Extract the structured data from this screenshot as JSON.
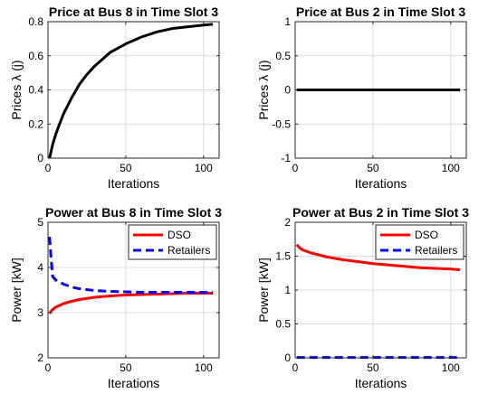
{
  "chart_data": [
    {
      "type": "line",
      "title": "Price at Bus 8 in Time Slot 3",
      "xlabel": "Iterations",
      "ylabel": "Prices λ (j)",
      "xlim": [
        0,
        110
      ],
      "ylim": [
        0,
        0.8
      ],
      "xticks": [
        0,
        50,
        100
      ],
      "yticks": [
        0,
        0.2,
        0.4,
        0.6,
        0.8
      ],
      "xtick_labels": [
        "0",
        "50",
        "100"
      ],
      "ytick_labels": [
        "0",
        "0.2",
        "0.4",
        "0.6",
        "0.8"
      ],
      "grid": true,
      "legend": null,
      "series": [
        {
          "color": "#000000",
          "style": "solid",
          "x": [
            1,
            2,
            3,
            5,
            7,
            10,
            15,
            20,
            25,
            30,
            40,
            50,
            60,
            70,
            80,
            90,
            100,
            106
          ],
          "y": [
            0.0,
            0.04,
            0.08,
            0.14,
            0.19,
            0.26,
            0.35,
            0.43,
            0.49,
            0.54,
            0.62,
            0.67,
            0.71,
            0.74,
            0.76,
            0.77,
            0.78,
            0.785
          ]
        }
      ]
    },
    {
      "type": "line",
      "title": "Price at Bus 2 in Time Slot 3",
      "xlabel": "Iterations",
      "ylabel": "Prices λ (j)",
      "xlim": [
        0,
        110
      ],
      "ylim": [
        -1,
        1
      ],
      "xticks": [
        0,
        50,
        100
      ],
      "yticks": [
        -1,
        -0.5,
        0,
        0.5,
        1
      ],
      "xtick_labels": [
        "0",
        "50",
        "100"
      ],
      "ytick_labels": [
        "-1",
        "-0.5",
        "0",
        "0.5",
        "1"
      ],
      "grid": true,
      "legend": null,
      "series": [
        {
          "color": "#000000",
          "style": "solid",
          "x": [
            1,
            106
          ],
          "y": [
            0,
            0
          ]
        }
      ]
    },
    {
      "type": "line",
      "title": "Power at Bus 8 in Time Slot 3",
      "xlabel": "Iterations",
      "ylabel": "Power [kW]",
      "xlim": [
        0,
        110
      ],
      "ylim": [
        2,
        5
      ],
      "xticks": [
        0,
        50,
        100
      ],
      "yticks": [
        2,
        3,
        4,
        5
      ],
      "xtick_labels": [
        "0",
        "50",
        "100"
      ],
      "ytick_labels": [
        "2",
        "3",
        "4",
        "5"
      ],
      "grid": true,
      "legend": "top-right",
      "series": [
        {
          "name": "DSO",
          "color": "#ff0000",
          "style": "solid",
          "x": [
            1,
            2,
            3,
            5,
            8,
            10,
            15,
            20,
            30,
            40,
            50,
            60,
            70,
            80,
            90,
            100,
            106
          ],
          "y": [
            2.98,
            3.03,
            3.07,
            3.12,
            3.17,
            3.2,
            3.25,
            3.29,
            3.34,
            3.37,
            3.39,
            3.4,
            3.41,
            3.42,
            3.43,
            3.43,
            3.43
          ]
        },
        {
          "name": "Retailers",
          "color": "#0000ff",
          "style": "dashed",
          "x": [
            1,
            2,
            3,
            5,
            8,
            10,
            15,
            20,
            30,
            40,
            50,
            60,
            70,
            80,
            90,
            100,
            106
          ],
          "y": [
            4.68,
            4.2,
            3.8,
            3.72,
            3.67,
            3.63,
            3.57,
            3.53,
            3.49,
            3.47,
            3.46,
            3.45,
            3.45,
            3.45,
            3.45,
            3.45,
            3.45
          ]
        }
      ]
    },
    {
      "type": "line",
      "title": "Power at Bus 2 in Time Slot 3",
      "xlabel": "Iterations",
      "ylabel": "Power [kW]",
      "xlim": [
        0,
        110
      ],
      "ylim": [
        0,
        2
      ],
      "xticks": [
        0,
        50,
        100
      ],
      "yticks": [
        0,
        0.5,
        1,
        1.5,
        2
      ],
      "xtick_labels": [
        "0",
        "50",
        "100"
      ],
      "ytick_labels": [
        "0",
        "0.5",
        "1",
        "1.5",
        "2"
      ],
      "grid": true,
      "legend": "top-right",
      "series": [
        {
          "name": "DSO",
          "color": "#ff0000",
          "style": "solid",
          "x": [
            1,
            3,
            5,
            10,
            15,
            20,
            30,
            40,
            50,
            60,
            70,
            80,
            90,
            100,
            106
          ],
          "y": [
            1.67,
            1.62,
            1.59,
            1.55,
            1.52,
            1.49,
            1.45,
            1.42,
            1.39,
            1.37,
            1.35,
            1.33,
            1.32,
            1.31,
            1.3
          ]
        },
        {
          "name": "Retailers",
          "color": "#0000ff",
          "style": "dashed",
          "x": [
            1,
            106
          ],
          "y": [
            0.005,
            0.005
          ]
        }
      ]
    }
  ]
}
